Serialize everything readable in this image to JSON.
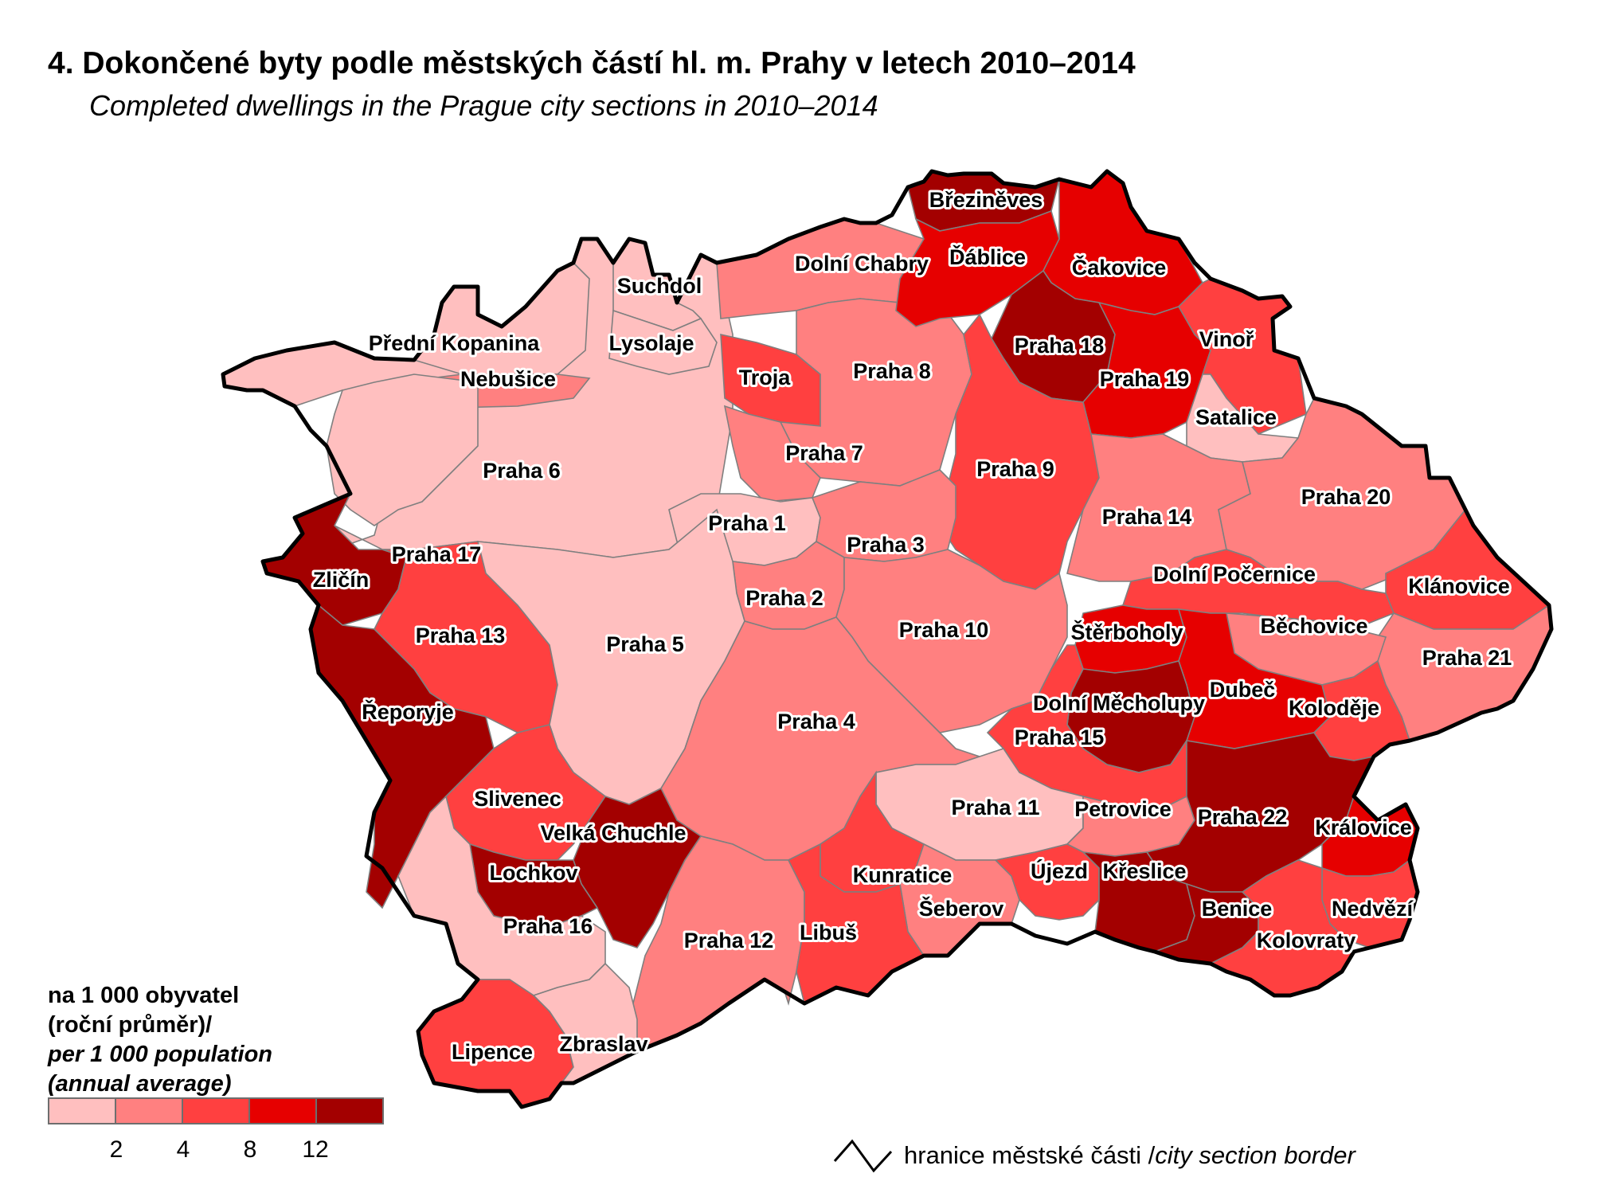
{
  "title": "4. Dokončené byty podle městských částí hl. m. Prahy v letech 2010–2014",
  "subtitle": "Completed dwellings in the Prague city sections in 2010–2014",
  "legend": {
    "title_cz": "na 1 000 obyvatel",
    "title_cz2": "(roční průměr)/",
    "title_en": "per 1 000 population",
    "title_en2": "(annual average)",
    "classes": [
      {
        "color": "#ffbfbf"
      },
      {
        "color": "#ff8080"
      },
      {
        "color": "#ff4040"
      },
      {
        "color": "#e60000"
      },
      {
        "color": "#a30000"
      }
    ],
    "breaks": [
      "2",
      "4",
      "8",
      "12"
    ],
    "border_label_cz": "hranice městské části / ",
    "border_label_en": "city section border"
  },
  "districts": [
    {
      "name": "Praha 6",
      "class": 1
    },
    {
      "name": "Přední Kopanina",
      "class": 1
    },
    {
      "name": "Nebušice",
      "class": 2
    },
    {
      "name": "Suchdol",
      "class": 1
    },
    {
      "name": "Lysolaje",
      "class": 1
    },
    {
      "name": "Troja",
      "class": 3
    },
    {
      "name": "Dolní Chabry",
      "class": 2
    },
    {
      "name": "Praha 8",
      "class": 2
    },
    {
      "name": "Praha 7",
      "class": 2
    },
    {
      "name": "Březiněves",
      "class": 5
    },
    {
      "name": "Ďáblice",
      "class": 4
    },
    {
      "name": "Čakovice",
      "class": 4
    },
    {
      "name": "Praha 18",
      "class": 5
    },
    {
      "name": "Praha 19",
      "class": 4
    },
    {
      "name": "Vinoř",
      "class": 3
    },
    {
      "name": "Satalice",
      "class": 1
    },
    {
      "name": "Praha 9",
      "class": 3
    },
    {
      "name": "Praha 14",
      "class": 2
    },
    {
      "name": "Praha 20",
      "class": 2
    },
    {
      "name": "Klánovice",
      "class": 3
    },
    {
      "name": "Praha 21",
      "class": 2
    },
    {
      "name": "Běchovice",
      "class": 2
    },
    {
      "name": "Dolní Počernice",
      "class": 3
    },
    {
      "name": "Štěrboholy",
      "class": 4
    },
    {
      "name": "Dubeč",
      "class": 4
    },
    {
      "name": "Koloděje",
      "class": 3
    },
    {
      "name": "Dolní Měcholupy",
      "class": 5
    },
    {
      "name": "Praha 1",
      "class": 1
    },
    {
      "name": "Praha 3",
      "class": 2
    },
    {
      "name": "Praha 2",
      "class": 2
    },
    {
      "name": "Praha 10",
      "class": 2
    },
    {
      "name": "Praha 15",
      "class": 3
    },
    {
      "name": "Praha 17",
      "class": 1
    },
    {
      "name": "Zličín",
      "class": 5
    },
    {
      "name": "Praha 13",
      "class": 3
    },
    {
      "name": "Praha 5",
      "class": 1
    },
    {
      "name": "Řeporyje",
      "class": 5
    },
    {
      "name": "Praha 4",
      "class": 2
    },
    {
      "name": "Slivenec",
      "class": 3
    },
    {
      "name": "Velká Chuchle",
      "class": 5
    },
    {
      "name": "Lochkov",
      "class": 5
    },
    {
      "name": "Praha 16",
      "class": 1
    },
    {
      "name": "Praha 11",
      "class": 1
    },
    {
      "name": "Petrovice",
      "class": 2
    },
    {
      "name": "Praha 22",
      "class": 5
    },
    {
      "name": "Královice",
      "class": 4
    },
    {
      "name": "Kunratice",
      "class": 3
    },
    {
      "name": "Šeberov",
      "class": 2
    },
    {
      "name": "Újezd",
      "class": 3
    },
    {
      "name": "Křeslice",
      "class": 5
    },
    {
      "name": "Benice",
      "class": 5
    },
    {
      "name": "Nedvězí",
      "class": 3
    },
    {
      "name": "Kolovraty",
      "class": 3
    },
    {
      "name": "Praha 12",
      "class": 2
    },
    {
      "name": "Libuš",
      "class": 3
    },
    {
      "name": "Lipence",
      "class": 3
    },
    {
      "name": "Zbraslav",
      "class": 1
    }
  ]
}
